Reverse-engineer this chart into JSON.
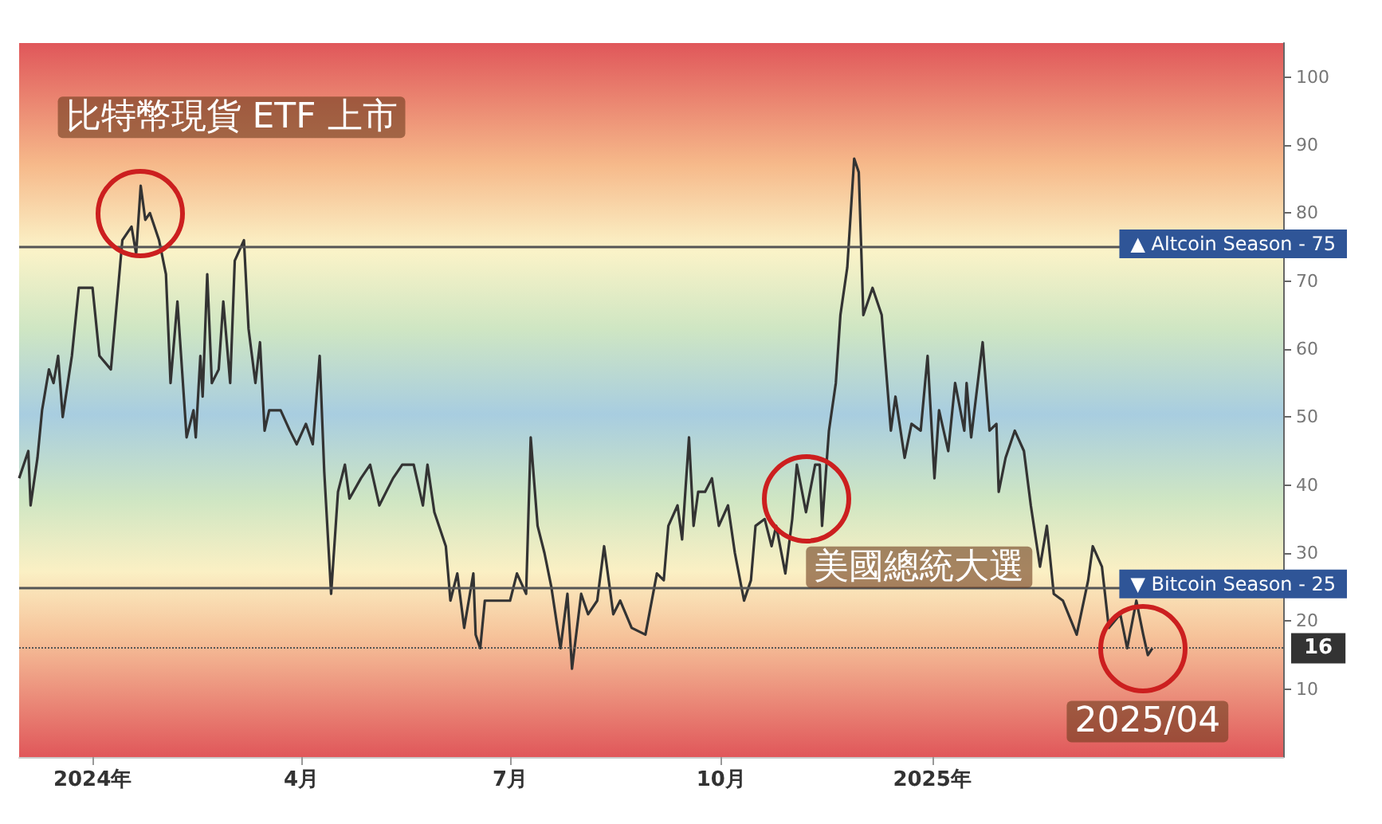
{
  "chart_data": {
    "type": "line",
    "xlim": [
      "2023-11-30",
      "2025-06-03"
    ],
    "ylim": [
      0,
      105
    ],
    "xticks": [
      {
        "value": "2024-01-01",
        "label": "2024年"
      },
      {
        "value": "2024-04-01",
        "label": "4月"
      },
      {
        "value": "2024-07-01",
        "label": "7月"
      },
      {
        "value": "2024-10-01",
        "label": "10月"
      },
      {
        "value": "2025-01-01",
        "label": "2025年"
      }
    ],
    "yticks": [
      10,
      20,
      30,
      40,
      50,
      60,
      70,
      80,
      90,
      100
    ],
    "grid": false,
    "marker": "none",
    "line_style": "solid",
    "series": [
      {
        "color": "#333333",
        "x": [
          "2023-11-30",
          "2023-12-04",
          "2023-12-05",
          "2023-12-08",
          "2023-12-10",
          "2023-12-13",
          "2023-12-15",
          "2023-12-17",
          "2023-12-19",
          "2023-12-23",
          "2023-12-26",
          "2024-01-01",
          "2024-01-04",
          "2024-01-09",
          "2024-01-14",
          "2024-01-18",
          "2024-01-20",
          "2024-01-22",
          "2024-01-24",
          "2024-01-26",
          "2024-01-30",
          "2024-02-02",
          "2024-02-04",
          "2024-02-07",
          "2024-02-11",
          "2024-02-14",
          "2024-02-15",
          "2024-02-17",
          "2024-02-18",
          "2024-02-20",
          "2024-02-22",
          "2024-02-25",
          "2024-02-27",
          "2024-03-01",
          "2024-03-03",
          "2024-03-07",
          "2024-03-09",
          "2024-03-12",
          "2024-03-14",
          "2024-03-16",
          "2024-03-18",
          "2024-03-23",
          "2024-03-27",
          "2024-03-30",
          "2024-04-03",
          "2024-04-06",
          "2024-04-09",
          "2024-04-11",
          "2024-04-14",
          "2024-04-17",
          "2024-04-20",
          "2024-04-22",
          "2024-04-27",
          "2024-05-01",
          "2024-05-05",
          "2024-05-11",
          "2024-05-15",
          "2024-05-20",
          "2024-05-24",
          "2024-05-26",
          "2024-05-29",
          "2024-06-03",
          "2024-06-05",
          "2024-06-08",
          "2024-06-11",
          "2024-06-15",
          "2024-06-16",
          "2024-06-18",
          "2024-06-20",
          "2024-06-26",
          "2024-07-01",
          "2024-07-04",
          "2024-07-08",
          "2024-07-10",
          "2024-07-13",
          "2024-07-16",
          "2024-07-19",
          "2024-07-23",
          "2024-07-26",
          "2024-07-28",
          "2024-08-01",
          "2024-08-04",
          "2024-08-08",
          "2024-08-11",
          "2024-08-15",
          "2024-08-18",
          "2024-08-23",
          "2024-08-29",
          "2024-09-03",
          "2024-09-06",
          "2024-09-08",
          "2024-09-12",
          "2024-09-14",
          "2024-09-17",
          "2024-09-19",
          "2024-09-21",
          "2024-09-24",
          "2024-09-27",
          "2024-09-30",
          "2024-10-04",
          "2024-10-07",
          "2024-10-11",
          "2024-10-14",
          "2024-10-16",
          "2024-10-20",
          "2024-10-23",
          "2024-10-25",
          "2024-10-29",
          "2024-11-01",
          "2024-11-03",
          "2024-11-07",
          "2024-11-11",
          "2024-11-13",
          "2024-11-14",
          "2024-11-17",
          "2024-11-20",
          "2024-11-22",
          "2024-11-25",
          "2024-11-28",
          "2024-11-30",
          "2024-12-02",
          "2024-12-06",
          "2024-12-10",
          "2024-12-14",
          "2024-12-16",
          "2024-12-20",
          "2024-12-23",
          "2024-12-27",
          "2024-12-30",
          "2025-01-02",
          "2025-01-04",
          "2025-01-08",
          "2025-01-11",
          "2025-01-15",
          "2025-01-16",
          "2025-01-18",
          "2025-01-23",
          "2025-01-26",
          "2025-01-29",
          "2025-01-30",
          "2025-02-02",
          "2025-02-06",
          "2025-02-10",
          "2025-02-13",
          "2025-02-17",
          "2025-02-20",
          "2025-02-23",
          "2025-02-27",
          "2025-03-05",
          "2025-03-10",
          "2025-03-12",
          "2025-03-16",
          "2025-03-19",
          "2025-03-24",
          "2025-03-27",
          "2025-03-31",
          "2025-04-03",
          "2025-04-05",
          "2025-04-07"
        ],
        "values": [
          41,
          45,
          37,
          44,
          51,
          57,
          55,
          59,
          50,
          59,
          69,
          69,
          59,
          57,
          76,
          78,
          74,
          84,
          79,
          80,
          76,
          71,
          55,
          67,
          47,
          51,
          47,
          59,
          53,
          71,
          55,
          57,
          67,
          55,
          73,
          76,
          63,
          55,
          61,
          48,
          51,
          51,
          48,
          46,
          49,
          46,
          59,
          42,
          24,
          39,
          43,
          38,
          41,
          43,
          37,
          41,
          43,
          43,
          37,
          43,
          36,
          31,
          23,
          27,
          19,
          27,
          18,
          16,
          23,
          23,
          23,
          27,
          24,
          47,
          34,
          30,
          25,
          16,
          24,
          13,
          24,
          21,
          23,
          31,
          21,
          23,
          19,
          18,
          27,
          26,
          34,
          37,
          32,
          47,
          34,
          39,
          39,
          41,
          34,
          37,
          30,
          23,
          26,
          34,
          35,
          31,
          34,
          27,
          35,
          43,
          36,
          43,
          43,
          34,
          48,
          55,
          65,
          72,
          88,
          86,
          65,
          69,
          65,
          48,
          53,
          44,
          49,
          48,
          59,
          41,
          51,
          45,
          55,
          48,
          55,
          47,
          61,
          48,
          49,
          39,
          44,
          48,
          45,
          37,
          28,
          34,
          24,
          23,
          18,
          26,
          31,
          28,
          19,
          21,
          16,
          23,
          18,
          15,
          16
        ]
      }
    ],
    "ref_lines": [
      {
        "axis": "y",
        "value": 75,
        "label": "▲ Altcoin Season - 75",
        "color": "#555555",
        "line_style": "solid"
      },
      {
        "axis": "y",
        "value": 25,
        "label": "▼ Bitcoin Season - 25",
        "color": "#555555",
        "line_style": "solid"
      },
      {
        "axis": "y",
        "value": 16,
        "label": "16",
        "color": "#555555",
        "line_style": "dotted"
      }
    ],
    "annotations": [
      {
        "text": "比特幣現貨 ETF 上市",
        "x": "2024-01-22",
        "y": 80
      },
      {
        "text": "美國總統大選",
        "x": "2024-11-07",
        "y": 38
      },
      {
        "text": "2025/04",
        "x": "2025-04-03",
        "y": 16
      }
    ]
  }
}
